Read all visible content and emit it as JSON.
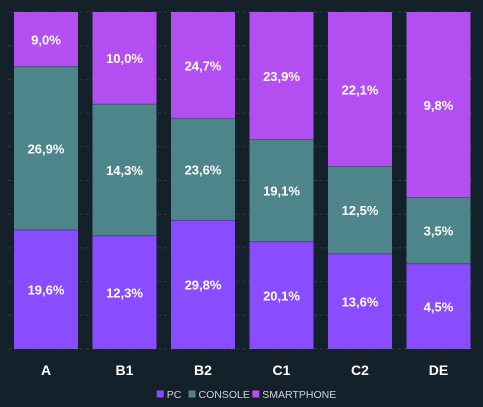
{
  "chart_data": {
    "type": "bar",
    "stacked": true,
    "normalized": true,
    "categories": [
      "A",
      "B1",
      "B2",
      "C1",
      "C2",
      "DE"
    ],
    "series": [
      {
        "name": "PC",
        "values": [
          19.6,
          12.3,
          29.8,
          20.1,
          13.6,
          4.5
        ],
        "labels": [
          "19,6%",
          "12,3%",
          "29,8%",
          "20,1%",
          "13,6%",
          "4,5%"
        ]
      },
      {
        "name": "CONSOLE",
        "values": [
          26.9,
          14.3,
          23.6,
          19.1,
          12.5,
          3.5
        ],
        "labels": [
          "26,9%",
          "14,3%",
          "23,6%",
          "19,1%",
          "12,5%",
          "3,5%"
        ]
      },
      {
        "name": "SMARTPHONE",
        "values": [
          9.0,
          10.0,
          24.7,
          23.9,
          22.1,
          9.8
        ],
        "labels": [
          "9,0%",
          "10,0%",
          "24,7%",
          "23,9%",
          "22,1%",
          "9,8%"
        ]
      }
    ],
    "legend_position": "bottom",
    "grid": true
  },
  "colors": {
    "background": "#14202a",
    "PC": "#8a4cff",
    "CONSOLE": "#4d858b",
    "SMARTPHONE": "#b34ef0",
    "grid": "#2e3a45",
    "axis_text": "#ffffff",
    "legend_text": "#cfd6dc",
    "bar_label": "#ffffff"
  }
}
